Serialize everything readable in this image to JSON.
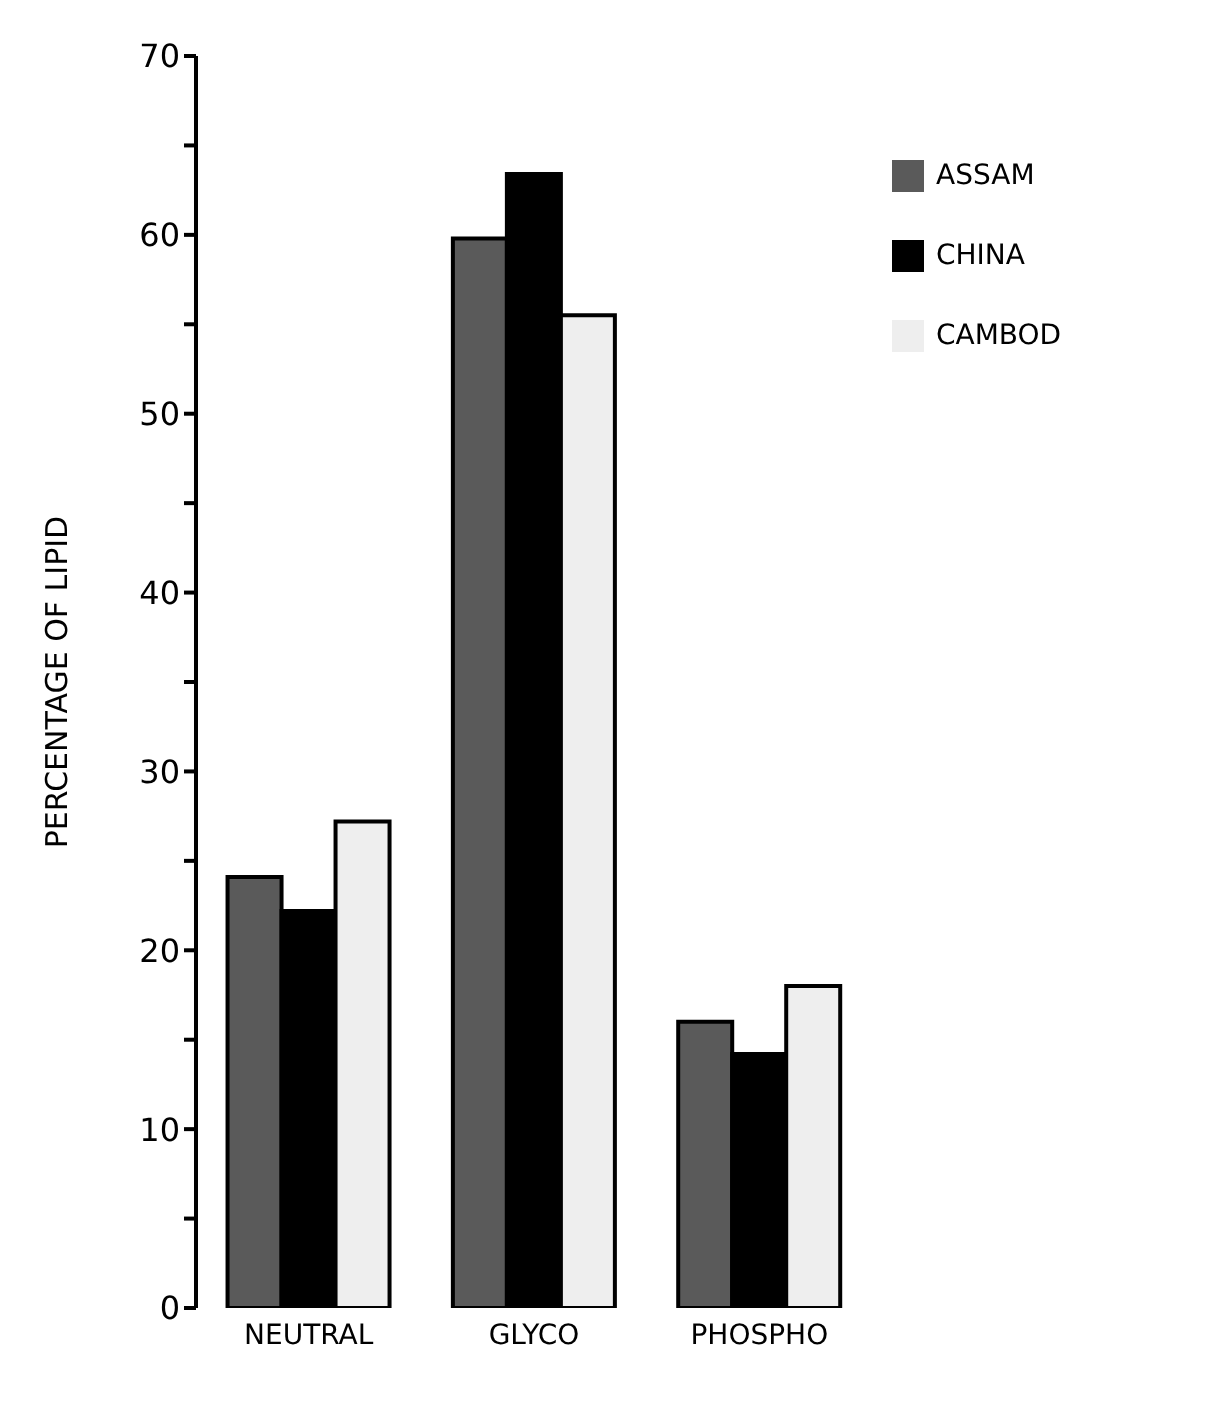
{
  "chart_data": {
    "type": "bar",
    "ylabel": "PERCENTAGE OF LIPID",
    "categories": [
      "NEUTRAL",
      "GLYCO",
      "PHOSPHO"
    ],
    "series": [
      {
        "name": "ASSAM",
        "color": "#5a5a5a",
        "values": [
          24.1,
          59.8,
          16
        ]
      },
      {
        "name": "CHINA",
        "color": "#000000",
        "values": [
          22.2,
          63.4,
          14.2
        ]
      },
      {
        "name": "CAMBOD",
        "color": "#eeeeee",
        "values": [
          27.2,
          55.5,
          18
        ]
      }
    ],
    "ylim": [
      0,
      70
    ],
    "yticks": [
      0,
      {
        "value": 5,
        "label": null
      },
      10,
      {
        "value": 15,
        "label": null
      },
      20,
      {
        "value": 25,
        "label": null
      },
      30,
      {
        "value": 35,
        "label": null
      },
      40,
      {
        "value": 45,
        "label": null
      },
      50,
      {
        "value": 55,
        "label": null
      },
      60,
      {
        "value": 65,
        "label": null
      },
      70
    ],
    "grid": false,
    "legend": "top right"
  }
}
